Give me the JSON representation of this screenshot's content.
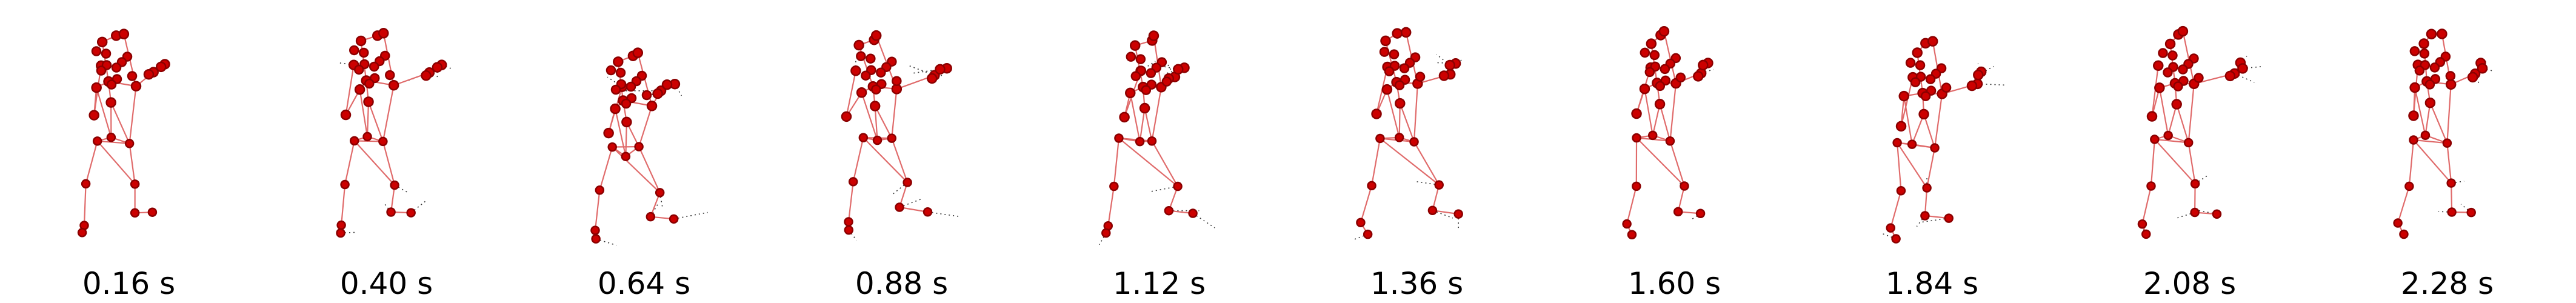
{
  "colors": {
    "joint": "#cc0000",
    "joint_edge": "#8b0000",
    "bone": "#e06b6b",
    "trail": "#333333"
  },
  "frames": [
    {
      "caption": "0.16 s",
      "pose": "neutral",
      "motion": 0.0
    },
    {
      "caption": "0.40 s",
      "pose": "arm-out",
      "motion": 0.6
    },
    {
      "caption": "0.64 s",
      "pose": "crouch",
      "motion": 1.0
    },
    {
      "caption": "0.88 s",
      "pose": "lean-forward",
      "motion": 0.9
    },
    {
      "caption": "1.12 s",
      "pose": "twist",
      "motion": 1.0
    },
    {
      "caption": "1.36 s",
      "pose": "step",
      "motion": 0.8
    },
    {
      "caption": "1.60 s",
      "pose": "neutral",
      "motion": 0.1
    },
    {
      "caption": "1.84 s",
      "pose": "lean-back",
      "motion": 0.7
    },
    {
      "caption": "2.08 s",
      "pose": "arm-out",
      "motion": 0.6
    },
    {
      "caption": "2.28 s",
      "pose": "neutral",
      "motion": 0.3
    }
  ]
}
